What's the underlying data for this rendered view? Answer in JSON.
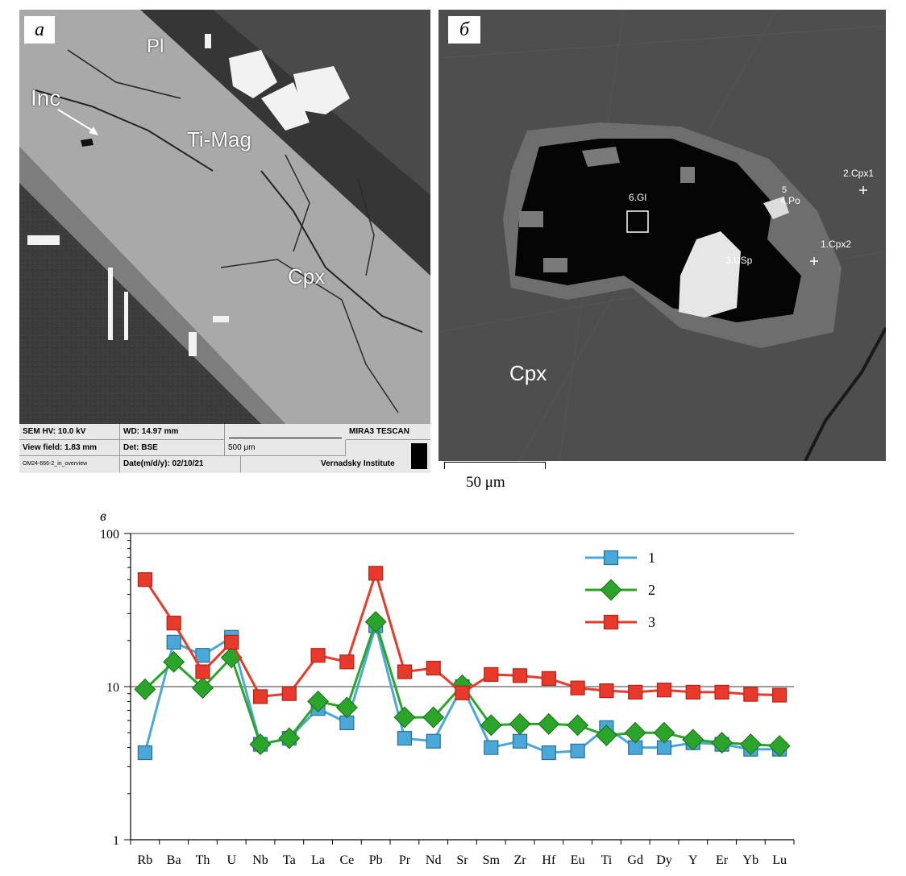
{
  "panel_a": {
    "letter": "а",
    "labels": {
      "pl": "Pl",
      "inc": "Inc",
      "ti_mag": "Ti-Mag",
      "cpx": "Cpx"
    },
    "sem_info": {
      "hv": "SEM HV: 10.0 kV",
      "wd": "WD: 14.97 mm",
      "brand": "MIRA3 TESCAN",
      "view_field": "View field: 1.83 mm",
      "det": "Det: BSE",
      "scale": "500 μm",
      "file": "OM24-666-2_in_overview",
      "date": "Date(m/d/y): 02/10/21",
      "institute": "Vernadsky Institute"
    }
  },
  "panel_b": {
    "letter": "б",
    "labels": {
      "gl": "6.Gl",
      "five": "5",
      "po": "4.Po",
      "cpx1": "2.Cpx1",
      "cpx2": "1.Cpx2",
      "usp": "3.USp",
      "cpx": "Cpx"
    },
    "scale": "50 μm"
  },
  "chart_letter": "в",
  "chart_data": {
    "type": "line",
    "yscale": "log",
    "ylim": [
      1,
      100
    ],
    "yticks": [
      "1",
      "10",
      "100"
    ],
    "categories": [
      "Rb",
      "Ba",
      "Th",
      "U",
      "Nb",
      "Ta",
      "La",
      "Ce",
      "Pb",
      "Pr",
      "Nd",
      "Sr",
      "Sm",
      "Zr",
      "Hf",
      "Eu",
      "Ti",
      "Gd",
      "Dy",
      "Y",
      "Er",
      "Yb",
      "Lu"
    ],
    "series": [
      {
        "name": "1",
        "color": "#4aa8d8",
        "marker": "square",
        "values": [
          3.7,
          19.5,
          16,
          21,
          4.2,
          4.6,
          7.2,
          5.8,
          25,
          4.6,
          4.4,
          10,
          4,
          4.4,
          3.7,
          3.8,
          5.4,
          4,
          4,
          4.3,
          4.2,
          3.9,
          3.9
        ]
      },
      {
        "name": "2",
        "color": "#2aa52a",
        "marker": "diamond",
        "values": [
          9.6,
          14.5,
          9.8,
          15.5,
          4.2,
          4.6,
          8,
          7.3,
          26.5,
          6.3,
          6.3,
          10.2,
          5.6,
          5.7,
          5.7,
          5.6,
          4.8,
          5,
          5,
          4.5,
          4.3,
          4.2,
          4.1
        ]
      },
      {
        "name": "3",
        "color": "#e8392a",
        "marker": "square",
        "values": [
          50,
          26,
          12.5,
          19.5,
          8.6,
          9,
          16,
          14.5,
          55,
          12.5,
          13.2,
          9.1,
          12,
          11.8,
          11.3,
          9.8,
          9.4,
          9.2,
          9.5,
          9.2,
          9.2,
          8.9,
          8.8
        ]
      }
    ],
    "legend_position": "top-right",
    "grid": "y-major"
  }
}
